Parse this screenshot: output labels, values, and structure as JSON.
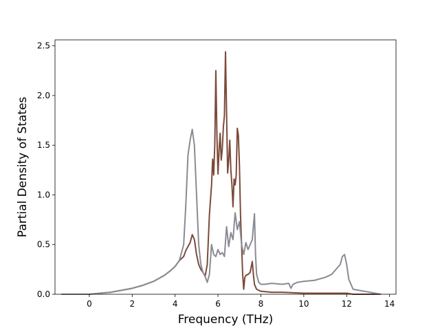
{
  "chart_data": {
    "type": "line",
    "title": "",
    "xlabel": "Frequency (THz)",
    "ylabel": "Partial Density of States",
    "xlim": [
      -1.6,
      14.3
    ],
    "ylim": [
      0,
      2.56
    ],
    "xticks": [
      0,
      2,
      4,
      6,
      8,
      10,
      12,
      14
    ],
    "xtick_labels": [
      "0",
      "2",
      "4",
      "6",
      "8",
      "10",
      "12",
      "14"
    ],
    "yticks": [
      0.0,
      0.5,
      1.0,
      1.5,
      2.0,
      2.5
    ],
    "ytick_labels": [
      "0.0",
      "0.5",
      "1.0",
      "1.5",
      "2.0",
      "2.5"
    ],
    "grid": false,
    "legend": "none",
    "series": [
      {
        "color": "#7b4a3a",
        "x": [
          -1.3,
          -0.5,
          0,
          0.5,
          1,
          1.5,
          2,
          2.5,
          3,
          3.5,
          3.8,
          4.0,
          4.2,
          4.4,
          4.5,
          4.6,
          4.7,
          4.8,
          4.9,
          5.0,
          5.1,
          5.2,
          5.3,
          5.4,
          5.5,
          5.6,
          5.7,
          5.75,
          5.8,
          5.85,
          5.9,
          5.95,
          6.0,
          6.05,
          6.1,
          6.15,
          6.2,
          6.25,
          6.3,
          6.35,
          6.4,
          6.45,
          6.5,
          6.55,
          6.6,
          6.65,
          6.7,
          6.75,
          6.8,
          6.85,
          6.9,
          6.95,
          7.0,
          7.05,
          7.1,
          7.15,
          7.2,
          7.25,
          7.3,
          7.4,
          7.5,
          7.6,
          7.65,
          7.7,
          7.8,
          8.0,
          8.5,
          9,
          10,
          11,
          11.5,
          12.0,
          12.3,
          13.6
        ],
        "y": [
          0,
          0,
          0,
          0.01,
          0.02,
          0.04,
          0.06,
          0.09,
          0.13,
          0.19,
          0.24,
          0.28,
          0.34,
          0.38,
          0.44,
          0.48,
          0.52,
          0.6,
          0.55,
          0.4,
          0.3,
          0.25,
          0.22,
          0.18,
          0.3,
          0.8,
          1.1,
          1.36,
          1.2,
          1.5,
          2.25,
          1.6,
          1.21,
          1.45,
          1.62,
          1.35,
          1.46,
          1.68,
          1.8,
          2.44,
          1.83,
          1.22,
          1.35,
          1.55,
          1.25,
          1.1,
          0.88,
          1.16,
          1.1,
          1.2,
          1.67,
          1.6,
          1.3,
          0.8,
          0.5,
          0.2,
          0.05,
          0.17,
          0.19,
          0.2,
          0.22,
          0.33,
          0.2,
          0.1,
          0.05,
          0.03,
          0.02,
          0.02,
          0.01,
          0.01,
          0.01,
          0.01,
          0,
          0
        ]
      },
      {
        "color": "#8a8a94",
        "x": [
          -1.3,
          -0.5,
          0,
          0.5,
          1,
          1.5,
          2,
          2.5,
          3,
          3.5,
          3.8,
          4.0,
          4.2,
          4.4,
          4.5,
          4.6,
          4.7,
          4.8,
          4.9,
          5.0,
          5.1,
          5.2,
          5.3,
          5.4,
          5.5,
          5.6,
          5.7,
          5.8,
          5.9,
          6.0,
          6.1,
          6.2,
          6.3,
          6.4,
          6.5,
          6.6,
          6.7,
          6.8,
          6.9,
          7.0,
          7.1,
          7.2,
          7.3,
          7.4,
          7.5,
          7.6,
          7.7,
          7.75,
          7.8,
          7.9,
          8.0,
          8.2,
          8.5,
          9.0,
          9.3,
          9.4,
          9.5,
          9.7,
          10.0,
          10.5,
          11.0,
          11.3,
          11.5,
          11.7,
          11.8,
          11.9,
          12.0,
          12.1,
          12.3,
          13.6
        ],
        "y": [
          0,
          0,
          0,
          0.01,
          0.02,
          0.04,
          0.06,
          0.09,
          0.13,
          0.19,
          0.24,
          0.28,
          0.34,
          0.5,
          0.9,
          1.4,
          1.55,
          1.66,
          1.5,
          1.0,
          0.5,
          0.3,
          0.22,
          0.18,
          0.12,
          0.2,
          0.5,
          0.4,
          0.38,
          0.45,
          0.4,
          0.42,
          0.38,
          0.68,
          0.48,
          0.62,
          0.55,
          0.82,
          0.65,
          0.73,
          0.5,
          0.4,
          0.52,
          0.45,
          0.5,
          0.55,
          0.81,
          0.4,
          0.2,
          0.12,
          0.1,
          0.1,
          0.11,
          0.1,
          0.11,
          0.06,
          0.1,
          0.12,
          0.13,
          0.14,
          0.17,
          0.2,
          0.25,
          0.3,
          0.38,
          0.4,
          0.3,
          0.15,
          0.05,
          0
        ]
      }
    ]
  }
}
